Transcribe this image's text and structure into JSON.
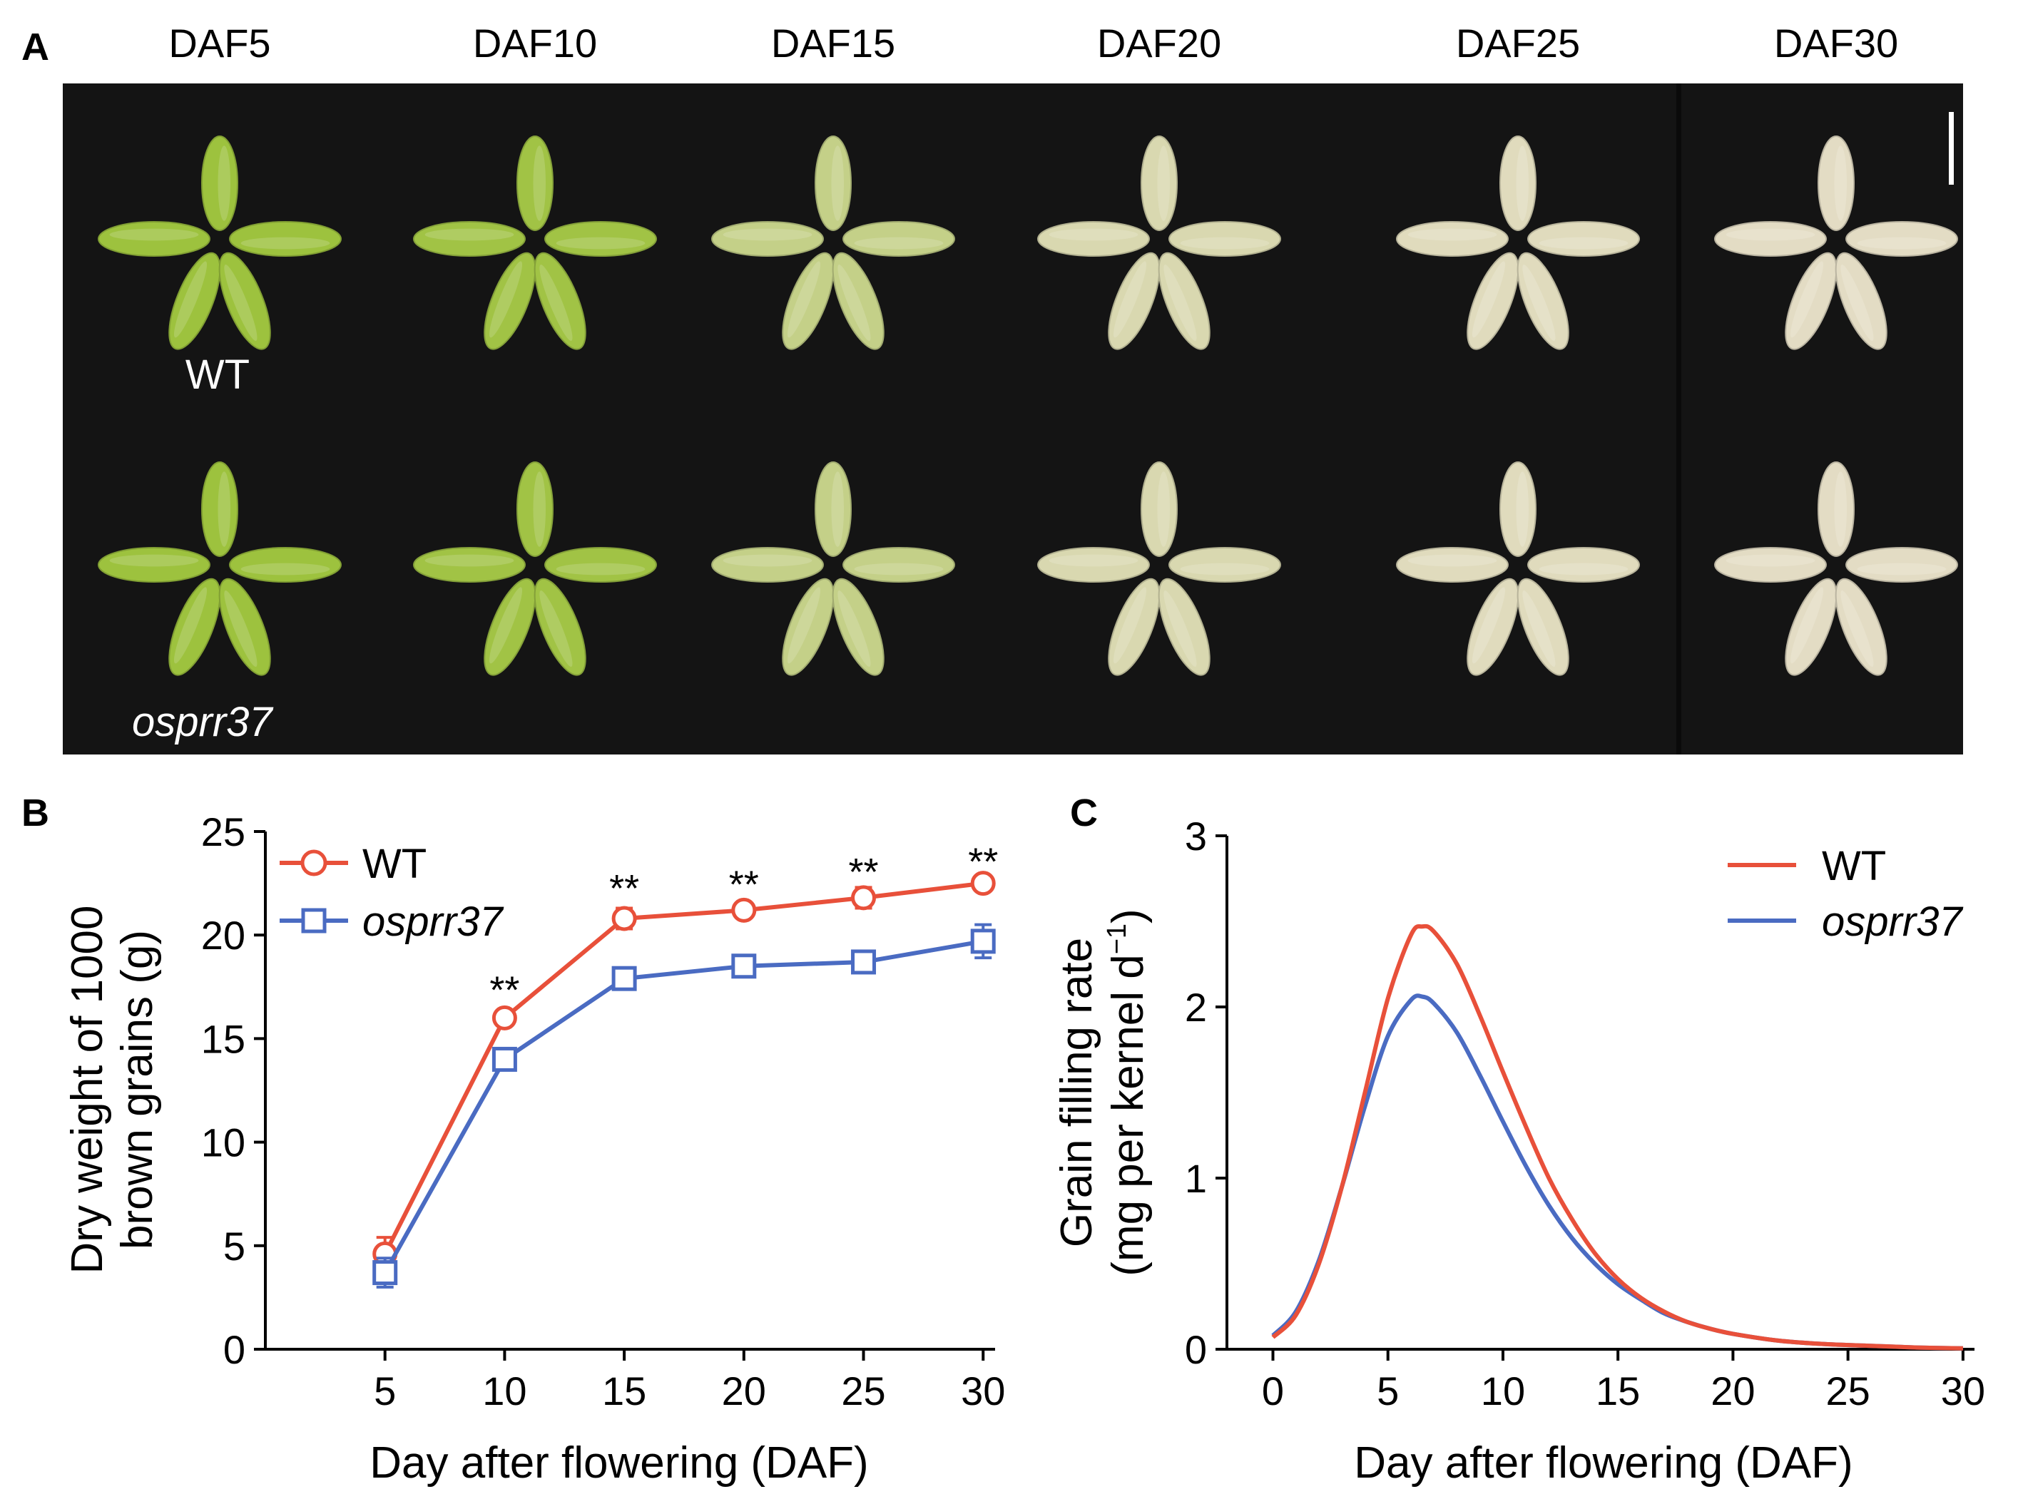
{
  "colors": {
    "wt": "#e8503a",
    "mutant": "#4a6bc2",
    "photo_background": "#141414",
    "grain_green": "#9dc23e",
    "grain_pale": "#e3dcc4",
    "axis": "#000000"
  },
  "panel_a": {
    "label": "A",
    "columns": [
      "DAF5",
      "DAF10",
      "DAF15",
      "DAF20",
      "DAF25",
      "DAF30"
    ],
    "row_labels": [
      "WT",
      "osprr37"
    ],
    "grain_maturity": [
      0.0,
      0.05,
      0.55,
      0.85,
      0.95,
      1.0
    ],
    "grains_per_cluster": 5
  },
  "panel_b": {
    "label": "B"
  },
  "panel_c": {
    "label": "C"
  },
  "chart_data": [
    {
      "id": "B",
      "type": "line",
      "title": "",
      "xlabel": "Day after flowering (DAF)",
      "ylabel_lines": [
        "Dry weight of 1000",
        "brown grains (g)"
      ],
      "x": [
        5,
        10,
        15,
        20,
        25,
        30
      ],
      "xlim": [
        0,
        30.5
      ],
      "xticks": [
        5,
        10,
        15,
        20,
        25,
        30
      ],
      "ylim": [
        0,
        25
      ],
      "yticks": [
        0,
        5,
        10,
        15,
        20,
        25
      ],
      "grid": false,
      "legend_position": "top-left",
      "series": [
        {
          "name": "WT",
          "marker": "circle",
          "values": [
            4.6,
            16.0,
            20.8,
            21.2,
            21.8,
            22.5
          ],
          "errors": [
            0.8,
            0.2,
            0.5,
            0.3,
            0.5,
            0.3
          ]
        },
        {
          "name": "osprr37",
          "marker": "square",
          "values": [
            3.7,
            14.0,
            17.9,
            18.5,
            18.7,
            19.7
          ],
          "errors": [
            0.7,
            0.3,
            0.3,
            0.3,
            0.3,
            0.8
          ]
        }
      ],
      "annotations": [
        {
          "x": 10,
          "text": "**",
          "y": 17.2
        },
        {
          "x": 15,
          "text": "**",
          "y": 22.1
        },
        {
          "x": 20,
          "text": "**",
          "y": 22.3
        },
        {
          "x": 25,
          "text": "**",
          "y": 22.9
        },
        {
          "x": 30,
          "text": "**",
          "y": 23.4
        }
      ]
    },
    {
      "id": "C",
      "type": "line",
      "title": "",
      "xlabel": "Day after flowering (DAF)",
      "ylabel_lines": [
        "Grain filling rate",
        "(mg per kernel d"
      ],
      "ylabel_superscript": "−1",
      "ylabel_suffix": ")",
      "xlim": [
        -2,
        30.5
      ],
      "xticks": [
        0,
        5,
        10,
        15,
        20,
        25,
        30
      ],
      "ylim": [
        0,
        3
      ],
      "yticks": [
        0,
        1,
        2,
        3
      ],
      "grid": false,
      "legend_position": "top-right",
      "series": [
        {
          "name": "WT",
          "x": [
            0,
            1,
            2,
            3,
            4,
            5,
            6,
            6.5,
            7,
            8,
            9,
            10,
            11,
            12,
            13,
            14,
            15,
            16,
            17,
            18,
            19,
            20,
            22,
            24,
            26,
            28,
            30
          ],
          "values": [
            0.07,
            0.2,
            0.5,
            0.95,
            1.5,
            2.05,
            2.42,
            2.47,
            2.44,
            2.25,
            1.95,
            1.62,
            1.3,
            1.0,
            0.76,
            0.56,
            0.41,
            0.3,
            0.22,
            0.16,
            0.12,
            0.09,
            0.05,
            0.03,
            0.02,
            0.01,
            0.005
          ]
        },
        {
          "name": "osprr37",
          "x": [
            0,
            1,
            2,
            3,
            4,
            5,
            6,
            6.5,
            7,
            8,
            9,
            10,
            11,
            12,
            13,
            14,
            15,
            16,
            17,
            18,
            19,
            20,
            22,
            24,
            26,
            28,
            30
          ],
          "values": [
            0.08,
            0.22,
            0.52,
            0.95,
            1.42,
            1.83,
            2.04,
            2.06,
            2.02,
            1.85,
            1.6,
            1.33,
            1.07,
            0.84,
            0.65,
            0.5,
            0.38,
            0.29,
            0.21,
            0.16,
            0.12,
            0.09,
            0.05,
            0.03,
            0.02,
            0.01,
            0.005
          ]
        }
      ]
    }
  ]
}
